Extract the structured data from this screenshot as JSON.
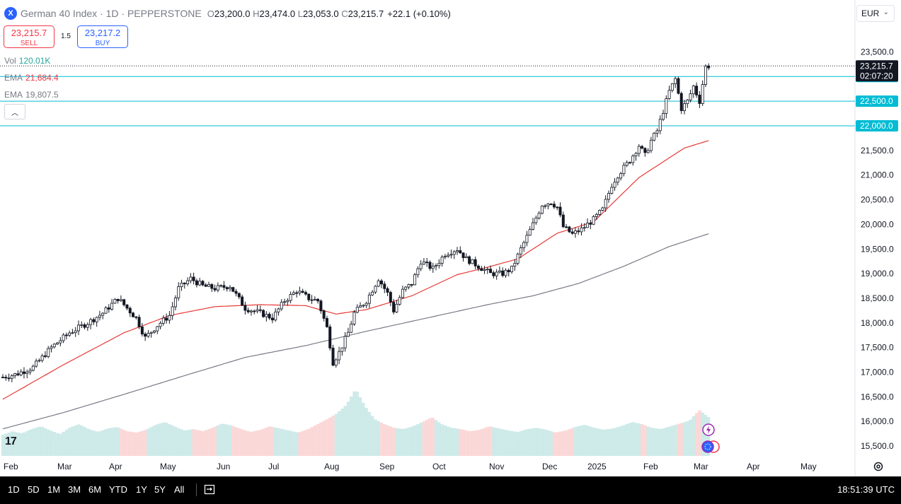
{
  "header": {
    "symbol_icon": "X",
    "title": "German 40 Index · 1D · PEPPERSTONE",
    "open_label": "O",
    "open": "23,200.0",
    "high_label": "H",
    "high": "23,474.0",
    "low_label": "L",
    "low": "23,053.0",
    "close_label": "C",
    "close": "23,215.7",
    "change": "+22.1 (+0.10%)",
    "currency": "EUR"
  },
  "trade": {
    "sell_price": "23,215.7",
    "sell_label": "SELL",
    "spread": "1.5",
    "buy_price": "23,217.2",
    "buy_label": "BUY"
  },
  "indicators": [
    {
      "name": "Vol",
      "value": "120.01K",
      "color": "#26a69a"
    },
    {
      "name": "EMA",
      "value": "21,684.4",
      "color": "#f23645"
    },
    {
      "name": "EMA",
      "value": "19,807.5",
      "color": "#787b86"
    }
  ],
  "price_labels": {
    "last_price": "23,215.7",
    "countdown": "02:07:20",
    "level_23000": "23,000.0",
    "level_22500": "22,500.0",
    "level_22000": "22,000.0"
  },
  "chart_data": {
    "type": "candlestick",
    "y_axis_ticks": [
      "23,500.0",
      "23,000.0",
      "22,500.0",
      "22,000.0",
      "21,500.0",
      "21,000.0",
      "20,500.0",
      "20,000.0",
      "19,500.0",
      "19,000.0",
      "18,500.0",
      "18,000.0",
      "17,500.0",
      "17,000.0",
      "16,500.0",
      "16,000.0",
      "15,500.0"
    ],
    "x_axis_ticks": [
      "Feb",
      "Mar",
      "Apr",
      "May",
      "Jun",
      "Jul",
      "Aug",
      "Sep",
      "Oct",
      "Nov",
      "Dec",
      "2025",
      "Feb",
      "Mar",
      "Apr",
      "May"
    ],
    "ylim": [
      15300,
      23650
    ],
    "horizontal_levels": [
      23000,
      22500,
      22000
    ],
    "last_price_line": 23215.7,
    "price_path": [
      [
        0,
        16900
      ],
      [
        4,
        16950
      ],
      [
        10,
        17100
      ],
      [
        16,
        17500
      ],
      [
        22,
        17800
      ],
      [
        28,
        18000
      ],
      [
        33,
        18200
      ],
      [
        38,
        18500
      ],
      [
        44,
        18100
      ],
      [
        47,
        17700
      ],
      [
        51,
        17950
      ],
      [
        55,
        18150
      ],
      [
        58,
        18700
      ],
      [
        62,
        18900
      ],
      [
        66,
        18750
      ],
      [
        70,
        18700
      ],
      [
        75,
        18750
      ],
      [
        80,
        18300
      ],
      [
        85,
        18200
      ],
      [
        89,
        18100
      ],
      [
        93,
        18450
      ],
      [
        97,
        18650
      ],
      [
        101,
        18500
      ],
      [
        104,
        18450
      ],
      [
        107,
        17900
      ],
      [
        109,
        17200
      ],
      [
        111,
        17400
      ],
      [
        114,
        17800
      ],
      [
        116,
        18200
      ],
      [
        120,
        18450
      ],
      [
        124,
        18900
      ],
      [
        127,
        18600
      ],
      [
        129,
        18250
      ],
      [
        132,
        18650
      ],
      [
        135,
        18800
      ],
      [
        138,
        19250
      ],
      [
        142,
        19100
      ],
      [
        146,
        19400
      ],
      [
        150,
        19500
      ],
      [
        153,
        19300
      ],
      [
        157,
        19150
      ],
      [
        161,
        19000
      ],
      [
        165,
        19000
      ],
      [
        168,
        19100
      ],
      [
        171,
        19500
      ],
      [
        175,
        20000
      ],
      [
        178,
        20400
      ],
      [
        181,
        20450
      ],
      [
        183,
        20350
      ],
      [
        185,
        19950
      ],
      [
        188,
        19800
      ],
      [
        191,
        19900
      ],
      [
        195,
        20100
      ],
      [
        198,
        20300
      ],
      [
        201,
        20800
      ],
      [
        203,
        21000
      ],
      [
        207,
        21300
      ],
      [
        210,
        21600
      ],
      [
        212,
        21400
      ],
      [
        214,
        21700
      ],
      [
        216,
        21900
      ],
      [
        218,
        22300
      ],
      [
        220,
        22700
      ],
      [
        222,
        22950
      ],
      [
        224,
        22350
      ],
      [
        226,
        22500
      ],
      [
        228,
        22800
      ],
      [
        230,
        22500
      ],
      [
        232,
        23200
      ],
      [
        233,
        23215
      ]
    ],
    "ema_fast": [
      [
        0,
        16450
      ],
      [
        20,
        17150
      ],
      [
        40,
        17800
      ],
      [
        55,
        18150
      ],
      [
        70,
        18330
      ],
      [
        85,
        18370
      ],
      [
        100,
        18350
      ],
      [
        110,
        18180
      ],
      [
        120,
        18270
      ],
      [
        135,
        18550
      ],
      [
        150,
        18980
      ],
      [
        160,
        19130
      ],
      [
        170,
        19300
      ],
      [
        183,
        19820
      ],
      [
        195,
        20050
      ],
      [
        210,
        20950
      ],
      [
        225,
        21550
      ],
      [
        233,
        21700
      ]
    ],
    "ema_slow": [
      [
        0,
        15850
      ],
      [
        20,
        16180
      ],
      [
        40,
        16550
      ],
      [
        60,
        16930
      ],
      [
        80,
        17300
      ],
      [
        100,
        17540
      ],
      [
        120,
        17830
      ],
      [
        140,
        18100
      ],
      [
        160,
        18370
      ],
      [
        175,
        18550
      ],
      [
        190,
        18800
      ],
      [
        205,
        19150
      ],
      [
        220,
        19550
      ],
      [
        233,
        19810
      ]
    ],
    "volume_profile": [
      0.3,
      0.35,
      0.32,
      0.38,
      0.42,
      0.36,
      0.31,
      0.4,
      0.45,
      0.38,
      0.34,
      0.39,
      0.41,
      0.35,
      0.33,
      0.37,
      0.44,
      0.48,
      0.42,
      0.36,
      0.38,
      0.35,
      0.4,
      0.46,
      0.43,
      0.38,
      0.34,
      0.37,
      0.42,
      0.39,
      0.36,
      0.33,
      0.38,
      0.45,
      0.52,
      0.6,
      0.72,
      0.95,
      0.7,
      0.52,
      0.45,
      0.4,
      0.38,
      0.42,
      0.48,
      0.55,
      0.45,
      0.4,
      0.38,
      0.35,
      0.37,
      0.42,
      0.39,
      0.36,
      0.34,
      0.38,
      0.4,
      0.37,
      0.33,
      0.36,
      0.41,
      0.44,
      0.4,
      0.37,
      0.39,
      0.43,
      0.48,
      0.45,
      0.4,
      0.38,
      0.42,
      0.46,
      0.5,
      0.65,
      0.55
    ]
  },
  "footer": {
    "ranges": [
      "1D",
      "5D",
      "1M",
      "3M",
      "6M",
      "YTD",
      "1Y",
      "5Y",
      "All"
    ],
    "clock": "18:51:39 UTC",
    "logo": "17"
  }
}
